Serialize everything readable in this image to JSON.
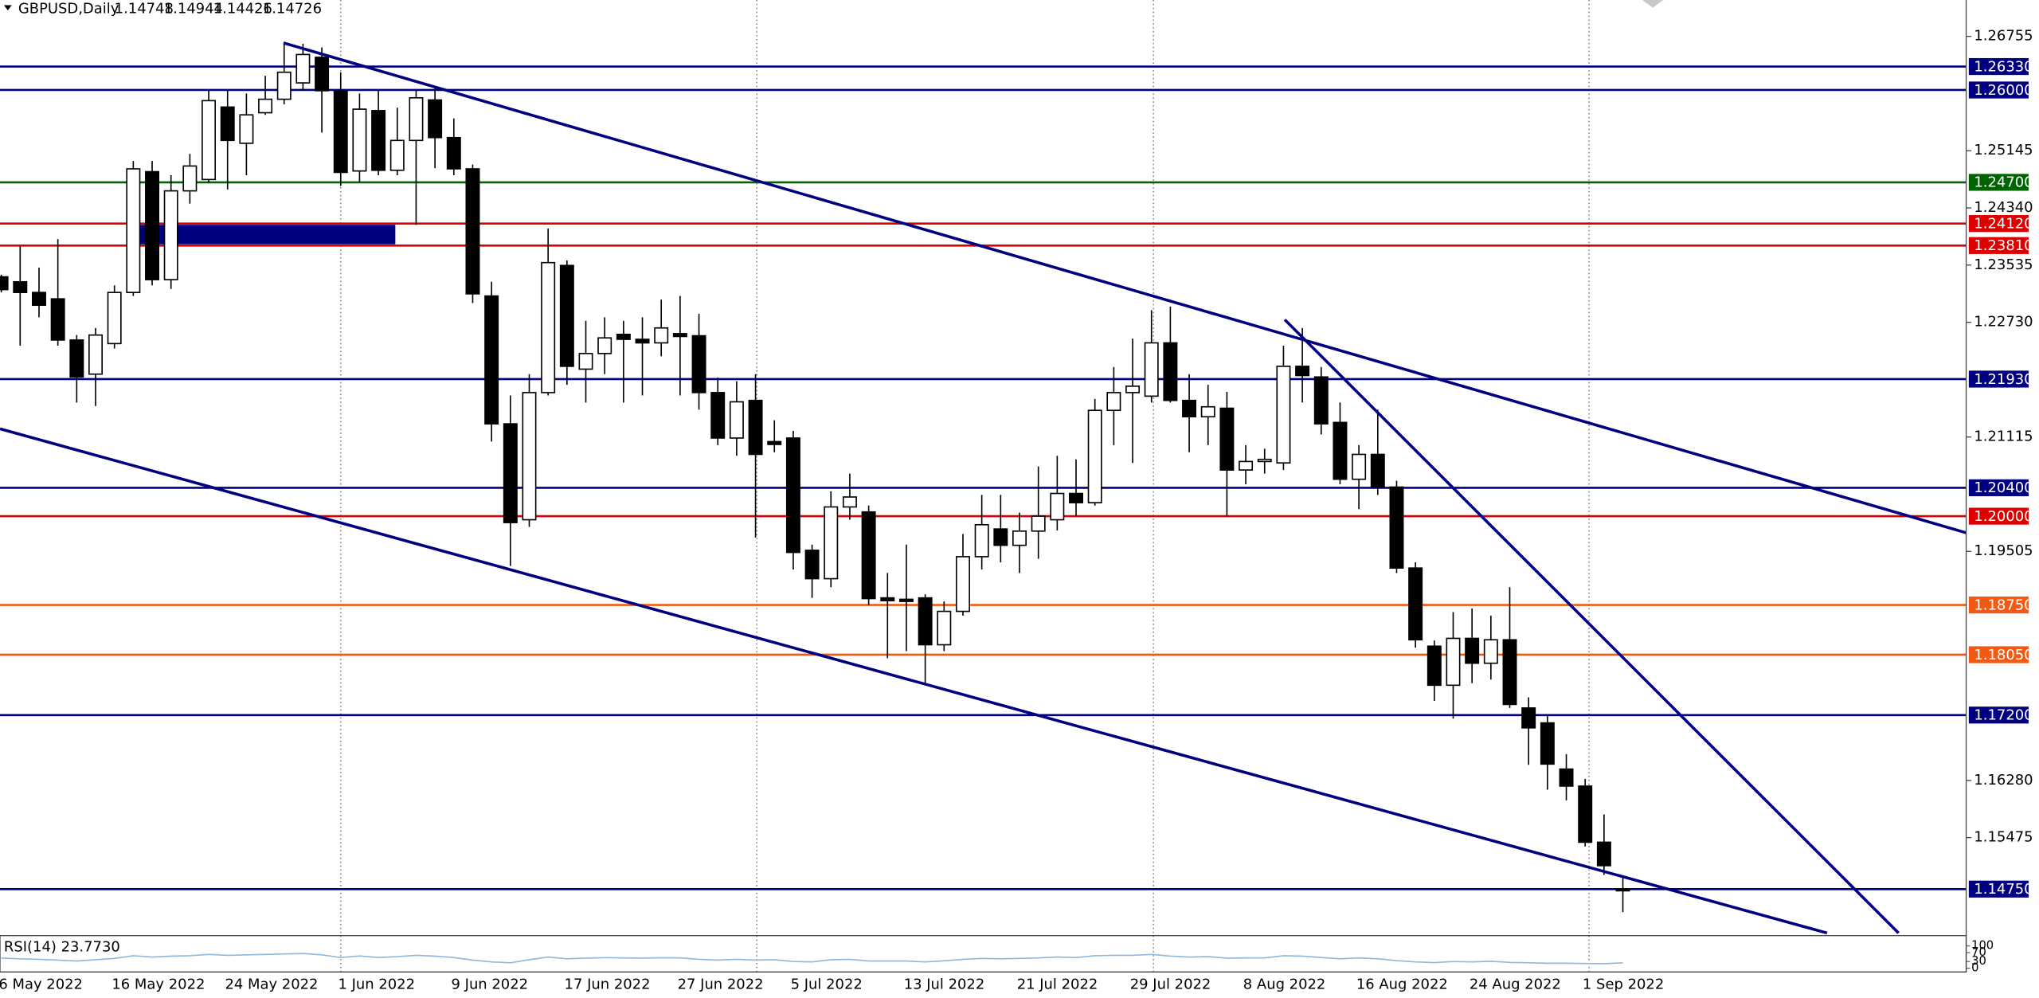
{
  "chart_data": {
    "type": "candlestick",
    "title": "GBPUSD,Daily",
    "categories": [
      "6 May 2022",
      null,
      null,
      null,
      null,
      null,
      "16 May 2022",
      null,
      null,
      null,
      null,
      null,
      "24 May 2022",
      null,
      null,
      null,
      null,
      null,
      "1 Jun 2022",
      null,
      null,
      null,
      null,
      null,
      "9 Jun 2022",
      null,
      null,
      null,
      null,
      null,
      "17 Jun 2022",
      null,
      null,
      null,
      null,
      null,
      "27 Jun 2022",
      null,
      null,
      null,
      null,
      null,
      "5 Jul 2022",
      null,
      null,
      null,
      null,
      null,
      "13 Jul 2022",
      null,
      null,
      null,
      null,
      null,
      "21 Jul 2022",
      null,
      null,
      null,
      null,
      null,
      "29 Jul 2022",
      null,
      null,
      null,
      null,
      null,
      "8 Aug 2022",
      null,
      null,
      null,
      null,
      null,
      "16 Aug 2022",
      null,
      null,
      null,
      null,
      null,
      "24 Aug 2022",
      null,
      null,
      null,
      null,
      null,
      "1 Sep 2022",
      null,
      null
    ],
    "open": [
      1.2337,
      1.233,
      1.2315,
      1.2306,
      1.2248,
      1.22,
      1.2243,
      1.2315,
      1.2485,
      1.2333,
      1.2458,
      1.2474,
      1.2576,
      1.2525,
      1.2568,
      1.2587,
      1.261,
      1.2646,
      1.2599,
      1.2486,
      1.2571,
      1.2487,
      1.2529,
      1.2586,
      1.2533,
      1.2489,
      1.231,
      1.213,
      1.1995,
      1.2174,
      1.2353,
      1.2207,
      1.2229,
      1.2256,
      1.2249,
      1.2244,
      1.2257,
      1.2254,
      1.2174,
      1.211,
      1.2163,
      1.2105,
      1.211,
      1.1952,
      1.1912,
      1.2013,
      1.2006,
      1.1885,
      1.1883,
      1.1885,
      1.1819,
      1.1866,
      1.1943,
      1.1982,
      1.1959,
      1.1979,
      1.1995,
      1.2032,
      1.2019,
      1.2149,
      1.2174,
      1.2169,
      1.2244,
      1.2163,
      1.214,
      1.2152,
      1.2065,
      1.2077,
      1.2075,
      1.2211,
      1.2196,
      1.2132,
      1.2052,
      1.2087,
      1.2041,
      1.1927,
      1.1817,
      1.1762,
      1.1828,
      1.1793,
      1.1826,
      1.173,
      1.1709,
      1.1644,
      1.162,
      1.1541,
      1.14748
    ],
    "high": [
      1.234,
      1.238,
      1.235,
      1.239,
      1.2255,
      1.2265,
      1.2325,
      1.25,
      1.25,
      1.248,
      1.251,
      1.26,
      1.26,
      1.2595,
      1.262,
      1.2665,
      1.2665,
      1.266,
      1.2625,
      1.2595,
      1.26,
      1.2575,
      1.26,
      1.2605,
      1.256,
      1.2495,
      1.233,
      1.217,
      1.22,
      1.2405,
      1.236,
      1.2275,
      1.228,
      1.2275,
      1.228,
      1.2305,
      1.231,
      1.2285,
      1.2195,
      1.219,
      1.22,
      1.2135,
      1.212,
      1.196,
      1.2035,
      1.206,
      1.2015,
      1.192,
      1.196,
      1.189,
      1.188,
      1.1975,
      1.203,
      1.203,
      1.2005,
      1.207,
      1.2085,
      1.208,
      1.2165,
      1.221,
      1.225,
      1.229,
      1.2295,
      1.22,
      1.2185,
      1.2175,
      1.21,
      1.2095,
      1.224,
      1.2265,
      1.221,
      1.216,
      1.21,
      1.215,
      1.205,
      1.1935,
      1.1825,
      1.1865,
      1.187,
      1.186,
      1.19,
      1.1745,
      1.172,
      1.1665,
      1.163,
      1.158,
      1.14944
    ],
    "low": [
      1.2315,
      1.224,
      1.228,
      1.224,
      1.216,
      1.2155,
      1.2236,
      1.231,
      1.2325,
      1.232,
      1.244,
      1.247,
      1.246,
      1.248,
      1.2565,
      1.258,
      1.26,
      1.254,
      1.2465,
      1.247,
      1.248,
      1.248,
      1.241,
      1.249,
      1.248,
      1.23,
      1.2105,
      1.193,
      1.1985,
      1.217,
      1.2185,
      1.216,
      1.22,
      1.216,
      1.217,
      1.2225,
      1.217,
      1.215,
      1.21,
      1.2085,
      1.197,
      1.209,
      1.1925,
      1.1885,
      1.19,
      1.1995,
      1.1875,
      1.18,
      1.181,
      1.1765,
      1.181,
      1.186,
      1.1925,
      1.1935,
      1.192,
      1.194,
      1.198,
      1.2,
      1.2015,
      1.21,
      1.2075,
      1.216,
      1.216,
      1.209,
      1.21,
      1.2,
      1.2045,
      1.206,
      1.2065,
      1.216,
      1.2115,
      1.2045,
      1.201,
      1.203,
      1.192,
      1.1815,
      1.174,
      1.1715,
      1.1765,
      1.177,
      1.173,
      1.165,
      1.1615,
      1.16,
      1.1535,
      1.1495,
      1.14426
    ],
    "close": [
      1.2319,
      1.2315,
      1.2297,
      1.2248,
      1.2196,
      1.2255,
      1.2315,
      1.2489,
      1.2333,
      1.2458,
      1.2493,
      1.2585,
      1.2529,
      1.2565,
      1.2587,
      1.2625,
      1.265,
      1.2599,
      1.2484,
      1.2573,
      1.2487,
      1.2529,
      1.2589,
      1.2533,
      1.2489,
      1.2313,
      1.213,
      1.1991,
      1.2174,
      1.2357,
      1.2211,
      1.2229,
      1.2251,
      1.2249,
      1.2244,
      1.2265,
      1.2253,
      1.2174,
      1.211,
      1.2161,
      1.2087,
      1.2101,
      1.1949,
      1.1912,
      1.2013,
      1.2027,
      1.1884,
      1.1881,
      1.188,
      1.1819,
      1.1866,
      1.1943,
      1.1988,
      1.1959,
      1.1979,
      1.2,
      1.2032,
      1.2019,
      1.2149,
      1.2174,
      1.2183,
      1.2244,
      1.2163,
      1.214,
      1.2154,
      1.2065,
      1.2077,
      1.208,
      1.2211,
      1.2198,
      1.213,
      1.2052,
      1.2087,
      1.2041,
      1.1927,
      1.1826,
      1.1762,
      1.1828,
      1.1793,
      1.1826,
      1.1735,
      1.1702,
      1.1651,
      1.162,
      1.1541,
      1.1508,
      1.14726
    ],
    "ylim": [
      1.14095,
      1.27267
    ],
    "yticks": [
      1.26755,
      1.25145,
      {
        "value": 1.2434,
        "label": "1.24340"
      },
      1.23535,
      {
        "value": 1.2273,
        "label": "1.22730"
      },
      1.21115,
      1.19505,
      {
        "value": 1.1628,
        "label": "1.16280"
      },
      1.15475
    ],
    "levels": [
      {
        "value": 1.2633,
        "label": "1.26330",
        "color": "#000080"
      },
      {
        "value": 1.26,
        "label": "1.26000",
        "color": "#000080"
      },
      {
        "value": 1.247,
        "label": "1.24700",
        "color": "#006400"
      },
      {
        "value": 1.2412,
        "label": "1.24120",
        "color": "#dd0000"
      },
      {
        "value": 1.2381,
        "label": "1.23810",
        "color": "#dd0000"
      },
      {
        "value": 1.2193,
        "label": "1.21930",
        "color": "#000080"
      },
      {
        "value": 1.204,
        "label": "1.20400",
        "color": "#000080"
      },
      {
        "value": 1.2,
        "label": "1.20000",
        "color": "#dd0000"
      },
      {
        "value": 1.1875,
        "label": "1.18750",
        "color": "#f05a14"
      },
      {
        "value": 1.1805,
        "label": "1.18050",
        "color": "#f05a14"
      },
      {
        "value": 1.172,
        "label": "1.17200",
        "color": "#000080"
      },
      {
        "value": 1.1475,
        "label": "1.14750",
        "color": "#000080"
      }
    ],
    "indicator": {
      "label": "RSI(14) 23.7730",
      "color": "#8fb8dc",
      "ylim": [
        0,
        100
      ],
      "yticks": [
        100,
        70,
        30,
        0
      ],
      "values": [
        45,
        42,
        40,
        36,
        32,
        38,
        44,
        56,
        50,
        54,
        56,
        62,
        58,
        60,
        62,
        64,
        66,
        60,
        48,
        55,
        48,
        52,
        58,
        54,
        48,
        36,
        28,
        24,
        38,
        50,
        42,
        45,
        47,
        46,
        45,
        47,
        46,
        40,
        36,
        40,
        36,
        38,
        30,
        28,
        38,
        40,
        32,
        32,
        32,
        28,
        33,
        40,
        44,
        42,
        44,
        46,
        50,
        48,
        56,
        58,
        58,
        62,
        54,
        50,
        52,
        45,
        46,
        46,
        56,
        54,
        48,
        42,
        46,
        42,
        34,
        28,
        25,
        30,
        28,
        31,
        26,
        24,
        22,
        22,
        21,
        20,
        23.773
      ]
    }
  }
}
